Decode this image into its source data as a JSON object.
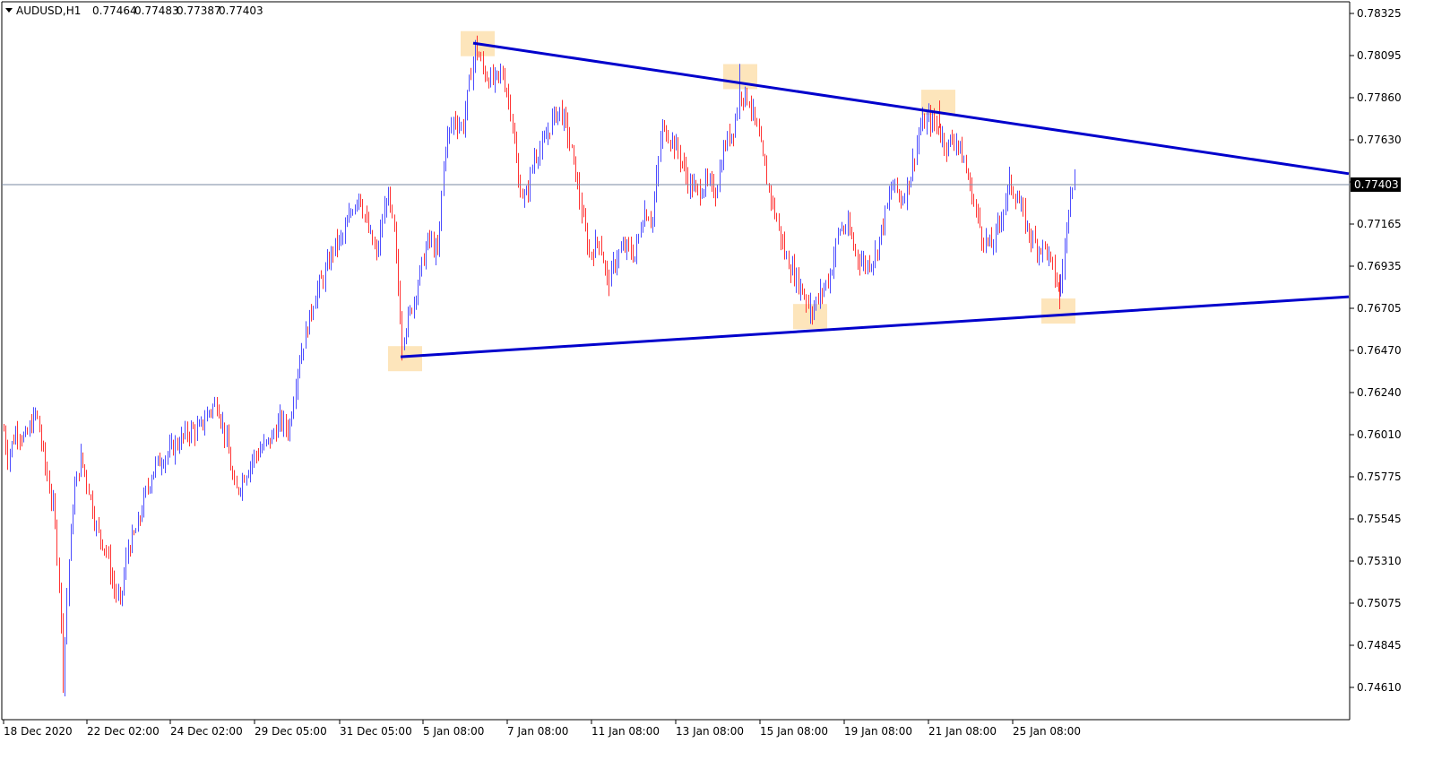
{
  "header": {
    "symbol": "AUDUSD,H1",
    "open": "0.77464",
    "high": "0.77483",
    "low": "0.77387",
    "close": "0.77403"
  },
  "chart_data": {
    "type": "candlestick",
    "symbol": "AUDUSD",
    "timeframe": "H1",
    "y_ticks": [
      "0.78325",
      "0.78095",
      "0.77860",
      "0.77630",
      "0.77403",
      "0.77165",
      "0.76935",
      "0.76705",
      "0.76470",
      "0.76240",
      "0.76010",
      "0.75775",
      "0.75545",
      "0.75310",
      "0.75075",
      "0.74845",
      "0.74610"
    ],
    "x_ticks": [
      "18 Dec 2020",
      "22 Dec 02:00",
      "24 Dec 02:00",
      "29 Dec 05:00",
      "31 Dec 05:00",
      "5 Jan 08:00",
      "7 Jan 08:00",
      "11 Jan 08:00",
      "13 Jan 08:00",
      "15 Jan 08:00",
      "19 Jan 08:00",
      "21 Jan 08:00",
      "25 Jan 08:00"
    ],
    "current_price": "0.77403",
    "ylim": [
      0.7452,
      0.7842
    ],
    "price_path": [
      [
        0,
        0.762
      ],
      [
        8,
        0.759
      ],
      [
        18,
        0.7605
      ],
      [
        28,
        0.76
      ],
      [
        40,
        0.7615
      ],
      [
        52,
        0.758
      ],
      [
        60,
        0.756
      ],
      [
        66,
        0.752
      ],
      [
        70,
        0.747
      ],
      [
        76,
        0.753
      ],
      [
        82,
        0.757
      ],
      [
        90,
        0.759
      ],
      [
        100,
        0.757
      ],
      [
        108,
        0.755
      ],
      [
        118,
        0.754
      ],
      [
        126,
        0.752
      ],
      [
        134,
        0.751
      ],
      [
        142,
        0.754
      ],
      [
        152,
        0.755
      ],
      [
        162,
        0.757
      ],
      [
        172,
        0.7585
      ],
      [
        182,
        0.759
      ],
      [
        192,
        0.7595
      ],
      [
        202,
        0.76
      ],
      [
        212,
        0.7605
      ],
      [
        222,
        0.7605
      ],
      [
        232,
        0.7615
      ],
      [
        242,
        0.762
      ],
      [
        252,
        0.76
      ],
      [
        262,
        0.757
      ],
      [
        272,
        0.758
      ],
      [
        282,
        0.759
      ],
      [
        292,
        0.7595
      ],
      [
        302,
        0.76
      ],
      [
        312,
        0.761
      ],
      [
        322,
        0.7605
      ],
      [
        332,
        0.764
      ],
      [
        342,
        0.766
      ],
      [
        352,
        0.768
      ],
      [
        362,
        0.769
      ],
      [
        372,
        0.7705
      ],
      [
        382,
        0.771
      ],
      [
        392,
        0.7725
      ],
      [
        400,
        0.7735
      ],
      [
        410,
        0.7715
      ],
      [
        420,
        0.77
      ],
      [
        432,
        0.7735
      ],
      [
        440,
        0.771
      ],
      [
        448,
        0.7655
      ],
      [
        458,
        0.767
      ],
      [
        468,
        0.769
      ],
      [
        478,
        0.771
      ],
      [
        488,
        0.77
      ],
      [
        496,
        0.776
      ],
      [
        506,
        0.7775
      ],
      [
        516,
        0.777
      ],
      [
        522,
        0.779
      ],
      [
        530,
        0.7815
      ],
      [
        540,
        0.78
      ],
      [
        550,
        0.7795
      ],
      [
        560,
        0.78
      ],
      [
        570,
        0.778
      ],
      [
        578,
        0.774
      ],
      [
        586,
        0.773
      ],
      [
        596,
        0.7755
      ],
      [
        606,
        0.776
      ],
      [
        616,
        0.7775
      ],
      [
        624,
        0.778
      ],
      [
        632,
        0.777
      ],
      [
        642,
        0.7745
      ],
      [
        650,
        0.772
      ],
      [
        658,
        0.77
      ],
      [
        668,
        0.771
      ],
      [
        678,
        0.7685
      ],
      [
        688,
        0.77
      ],
      [
        698,
        0.7705
      ],
      [
        708,
        0.77
      ],
      [
        718,
        0.7725
      ],
      [
        728,
        0.772
      ],
      [
        738,
        0.777
      ],
      [
        748,
        0.7765
      ],
      [
        758,
        0.7755
      ],
      [
        768,
        0.774
      ],
      [
        778,
        0.7735
      ],
      [
        788,
        0.774
      ],
      [
        798,
        0.7735
      ],
      [
        808,
        0.776
      ],
      [
        818,
        0.777
      ],
      [
        826,
        0.779
      ],
      [
        836,
        0.7785
      ],
      [
        846,
        0.7765
      ],
      [
        856,
        0.774
      ],
      [
        866,
        0.772
      ],
      [
        876,
        0.77
      ],
      [
        886,
        0.769
      ],
      [
        896,
        0.768
      ],
      [
        906,
        0.767
      ],
      [
        916,
        0.768
      ],
      [
        926,
        0.769
      ],
      [
        936,
        0.7715
      ],
      [
        946,
        0.7715
      ],
      [
        956,
        0.77
      ],
      [
        966,
        0.7695
      ],
      [
        976,
        0.77
      ],
      [
        986,
        0.772
      ],
      [
        996,
        0.774
      ],
      [
        1006,
        0.773
      ],
      [
        1016,
        0.7745
      ],
      [
        1026,
        0.777
      ],
      [
        1036,
        0.7775
      ],
      [
        1046,
        0.777
      ],
      [
        1056,
        0.776
      ],
      [
        1066,
        0.7765
      ],
      [
        1076,
        0.775
      ],
      [
        1086,
        0.773
      ],
      [
        1096,
        0.771
      ],
      [
        1106,
        0.7705
      ],
      [
        1116,
        0.772
      ],
      [
        1126,
        0.774
      ],
      [
        1136,
        0.773
      ],
      [
        1146,
        0.7715
      ],
      [
        1156,
        0.7705
      ],
      [
        1166,
        0.7705
      ],
      [
        1176,
        0.769
      ],
      [
        1182,
        0.768
      ],
      [
        1188,
        0.7705
      ],
      [
        1194,
        0.774
      ],
      [
        1200,
        0.7742
      ]
    ],
    "trendlines": [
      {
        "name": "resistance",
        "color": "#0000cc",
        "from": [
          528,
          0.78163
        ],
        "to": [
          1505,
          0.7745
        ]
      },
      {
        "name": "support",
        "color": "#0000cc",
        "from": [
          447,
          0.7645
        ],
        "to": [
          1505,
          0.76778
        ]
      }
    ],
    "highlighted_zones": [
      {
        "center": [
          533,
          0.7816
        ]
      },
      {
        "center": [
          826,
          0.7798
        ]
      },
      {
        "center": [
          1047,
          0.7784
        ]
      },
      {
        "center": [
          904,
          0.7667
        ]
      },
      {
        "center": [
          1181,
          0.767
        ]
      },
      {
        "center": [
          452,
          0.7644
        ]
      }
    ],
    "bull_color": "#4d4dff",
    "bear_color": "#ff3333",
    "grid": false
  }
}
